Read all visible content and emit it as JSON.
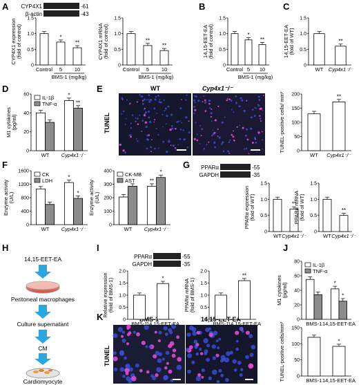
{
  "panels": {
    "A": "A",
    "B": "B",
    "C": "C",
    "D": "D",
    "E": "E",
    "F": "F",
    "G": "G",
    "H": "H",
    "I": "I",
    "J": "J",
    "K": "K"
  },
  "blot_labels": {
    "cyp": "CYP4X1",
    "actin": "β-actin",
    "m61": "-61",
    "m43": "-43",
    "ppar": "PPARα",
    "gapdh": "GAPDH",
    "m55": "-55",
    "m35": "-35"
  },
  "image_labels": {
    "wt": "WT",
    "cyp": "Cyp4x1⁻/⁻",
    "tunel": "TUNEL",
    "bms": "BMS-1",
    "eet": "14,15-EET-EA"
  },
  "flow": {
    "s1": "14,15-EET-EA",
    "s2": "Peritoneal macrophages",
    "s3": "Culture supernatant",
    "s4": "CM",
    "s5": "Cardiomyocyte"
  },
  "colors": {
    "black_bar": "#333333",
    "white_bar": "#ffffff",
    "gray_bar": "#8c8c8c",
    "arrow": "#2ba7e0",
    "dish": "#e95b4f"
  },
  "chart_data": [
    {
      "id": "A1",
      "type": "bar",
      "ylabel": "CYP4X1 expression (fold of control)",
      "categories": [
        "Control",
        "5",
        "10"
      ],
      "xgroup": "BMS-1 (mg/kg)",
      "values": [
        1.0,
        0.73,
        0.55
      ],
      "ylim": [
        0,
        1.5
      ],
      "ticks": [
        "0",
        "0.5",
        "1.0",
        "1.5"
      ],
      "sig": [
        "",
        "*",
        "**"
      ]
    },
    {
      "id": "A2",
      "type": "bar",
      "ylabel": "CYP4X1 mRNA (fold of control)",
      "categories": [
        "Control",
        "5",
        "10"
      ],
      "xgroup": "BMS-1 (mg/kg)",
      "values": [
        1.0,
        0.62,
        0.46
      ],
      "ylim": [
        0,
        1.5
      ],
      "ticks": [
        "0",
        "0.5",
        "1.0",
        "1.5"
      ],
      "sig": [
        "",
        "**",
        "**"
      ]
    },
    {
      "id": "B",
      "type": "bar",
      "ylabel": "14,15-EET-EA (fold of control)",
      "categories": [
        "Control",
        "5",
        "10"
      ],
      "xgroup": "BMS-1 (mg/kg)",
      "values": [
        1.0,
        0.8,
        0.65
      ],
      "ylim": [
        0,
        1.5
      ],
      "ticks": [
        "0",
        "0.5",
        "1.0",
        "1.5"
      ],
      "sig": [
        "",
        "*",
        "**"
      ]
    },
    {
      "id": "C",
      "type": "bar",
      "ylabel": "14,15-EET-EA (fold of WT)",
      "categories": [
        "WT",
        "Cyp4x1⁻/⁻"
      ],
      "values": [
        1.0,
        0.6
      ],
      "ylim": [
        0,
        1.5
      ],
      "ticks": [
        "0",
        "0.5",
        "1.0",
        "1.5"
      ],
      "sig": [
        "",
        "**"
      ]
    },
    {
      "id": "D",
      "type": "bar",
      "ylabel": "M1 cytokines (pg/ml)",
      "categories": [
        "WT",
        "Cyp4x1⁻/⁻"
      ],
      "series": [
        {
          "name": "IL-1β",
          "values": [
            40,
            53
          ]
        },
        {
          "name": "TNF-α",
          "values": [
            30,
            45
          ]
        }
      ],
      "ylim": [
        0,
        60
      ],
      "ticks": [
        "0",
        "20",
        "40",
        "60"
      ],
      "sig": [
        [
          "",
          "*"
        ],
        [
          "",
          "**"
        ]
      ]
    },
    {
      "id": "E",
      "type": "bar",
      "ylabel": "TUNEL-positive cells/ mm²",
      "categories": [
        "WT",
        "Cyp4x1⁻/⁻"
      ],
      "values": [
        130,
        172
      ],
      "ylim": [
        0,
        200
      ],
      "ticks": [
        "0",
        "50",
        "100",
        "150",
        "200"
      ],
      "sig": [
        "",
        "**"
      ]
    },
    {
      "id": "F1",
      "type": "bar",
      "ylabel": "Enzyme activity (U/L)",
      "categories": [
        "WT",
        "Cyp4x1⁻/⁻"
      ],
      "series": [
        {
          "name": "CK",
          "values": [
            1060,
            1250
          ]
        },
        {
          "name": "LDH",
          "values": [
            600,
            780
          ]
        }
      ],
      "ylim": [
        0,
        1600
      ],
      "ticks": [
        "0",
        "400",
        "800",
        "1200",
        "1600"
      ],
      "sig": [
        [
          "",
          "*"
        ],
        [
          "",
          "*"
        ]
      ]
    },
    {
      "id": "F2",
      "type": "bar",
      "ylabel": "Enzyme activity (U/L)",
      "categories": [
        "WT",
        "Cyp4x1⁻/⁻"
      ],
      "series": [
        {
          "name": "CK-MB",
          "values": [
            205,
            285
          ]
        },
        {
          "name": "AST",
          "values": [
            285,
            350
          ]
        }
      ],
      "ylim": [
        0,
        400
      ],
      "ticks": [
        "0",
        "100",
        "200",
        "300",
        "400"
      ],
      "sig": [
        [
          "",
          "**"
        ],
        [
          "",
          "*"
        ]
      ]
    },
    {
      "id": "G1",
      "type": "bar",
      "ylabel": "PPARα expression (fold of WT)",
      "categories": [
        "WT",
        "Cyp4x1⁻/⁻"
      ],
      "values": [
        1.0,
        0.7
      ],
      "ylim": [
        0,
        1.5
      ],
      "ticks": [
        "0",
        "0.5",
        "1.0",
        "1.5"
      ],
      "sig": [
        "",
        "**"
      ]
    },
    {
      "id": "G2",
      "type": "bar",
      "ylabel": "PPARα mRNA (fold of WT)",
      "categories": [
        "WT",
        "Cyp4x1⁻/⁻"
      ],
      "values": [
        1.0,
        0.5
      ],
      "ylim": [
        0,
        1.5
      ],
      "ticks": [
        "0",
        "0.5",
        "1.0",
        "1.5"
      ],
      "sig": [
        "",
        "**"
      ]
    },
    {
      "id": "I1",
      "type": "bar",
      "ylabel": "Relative expression (fold of BMS-1)",
      "categories": [
        "BMS-1",
        "14,15-EET-EA"
      ],
      "values": [
        1.0,
        1.48
      ],
      "ylim": [
        0,
        2.0
      ],
      "ticks": [
        "0",
        "0.5",
        "1.0",
        "1.5",
        "2.0"
      ],
      "sig": [
        "",
        "*"
      ]
    },
    {
      "id": "I2",
      "type": "bar",
      "ylabel": "PPARα mRNA (fold of BMS-1)",
      "categories": [
        "BMS-1",
        "14,15-EET-EA"
      ],
      "values": [
        1.0,
        1.6
      ],
      "ylim": [
        0,
        2.0
      ],
      "ticks": [
        "0",
        "0.5",
        "1.0",
        "1.5",
        "2.0"
      ],
      "sig": [
        "",
        "**"
      ]
    },
    {
      "id": "J",
      "type": "bar",
      "ylabel": "M1 cytokines (pg/ml)",
      "categories": [
        "BMS-1",
        "14,15-EET-EA"
      ],
      "series": [
        {
          "name": "IL-1β",
          "values": [
            55,
            42
          ]
        },
        {
          "name": "TNF-α",
          "values": [
            34,
            25
          ]
        }
      ],
      "ylim": [
        0,
        80
      ],
      "ticks": [
        "0",
        "20",
        "40",
        "60",
        "80"
      ],
      "sig": [
        [
          "",
          "*"
        ],
        [
          "",
          "*"
        ]
      ]
    },
    {
      "id": "K",
      "type": "bar",
      "ylabel": "TUNEL-positive cells/mm²",
      "categories": [
        "BMS-1",
        "14,15-EET-EA"
      ],
      "values": [
        120,
        92
      ],
      "ylim": [
        0,
        150
      ],
      "ticks": [
        "0",
        "50",
        "100",
        "150"
      ],
      "sig": [
        "",
        "*"
      ]
    }
  ]
}
